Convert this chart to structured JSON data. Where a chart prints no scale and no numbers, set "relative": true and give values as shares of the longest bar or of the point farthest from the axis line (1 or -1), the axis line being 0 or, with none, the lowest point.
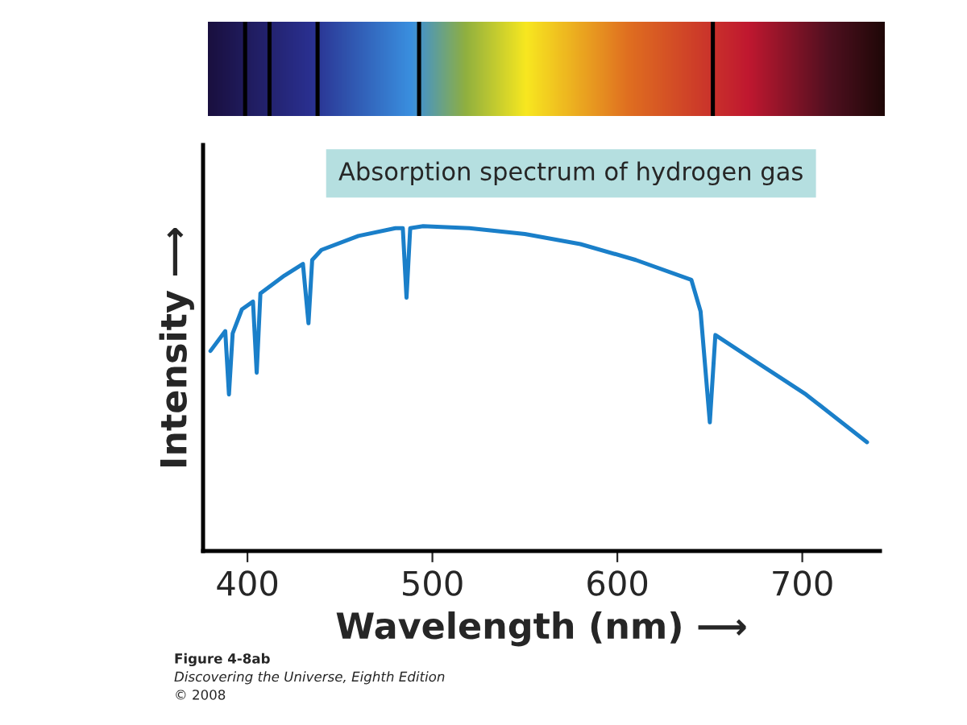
{
  "chart_data": {
    "type": "line",
    "xlabel": "Wavelength (nm) ⟶",
    "ylabel": "Intensity ⟶",
    "relative": true,
    "xlim": [
      376,
      742
    ],
    "xticks": [
      400,
      500,
      600,
      700
    ],
    "grid": false,
    "legend": false,
    "tick_labels": "x",
    "marker": "none",
    "line_style": "solid",
    "series": [
      {
        "color": "#1a7fc9",
        "x": [
          380,
          388,
          390,
          392,
          397,
          403,
          405,
          407,
          420,
          430,
          433,
          435,
          440,
          460,
          480,
          484,
          486,
          488,
          495,
          520,
          550,
          580,
          610,
          640,
          645,
          650,
          653,
          676,
          702,
          735
        ],
        "values": [
          0.616,
          0.677,
          0.482,
          0.67,
          0.744,
          0.768,
          0.549,
          0.793,
          0.848,
          0.884,
          0.701,
          0.896,
          0.927,
          0.97,
          0.994,
          0.994,
          0.78,
          0.994,
          1,
          0.994,
          0.976,
          0.945,
          0.896,
          0.835,
          0.738,
          0.396,
          0.665,
          0.579,
          0.482,
          0.335
        ]
      }
    ],
    "annotations": [
      "Absorption spectrum of hydrogen gas",
      "Figure 4-8ab",
      "Discovering the Universe, Eighth Edition",
      "© 2008"
    ]
  }
}
